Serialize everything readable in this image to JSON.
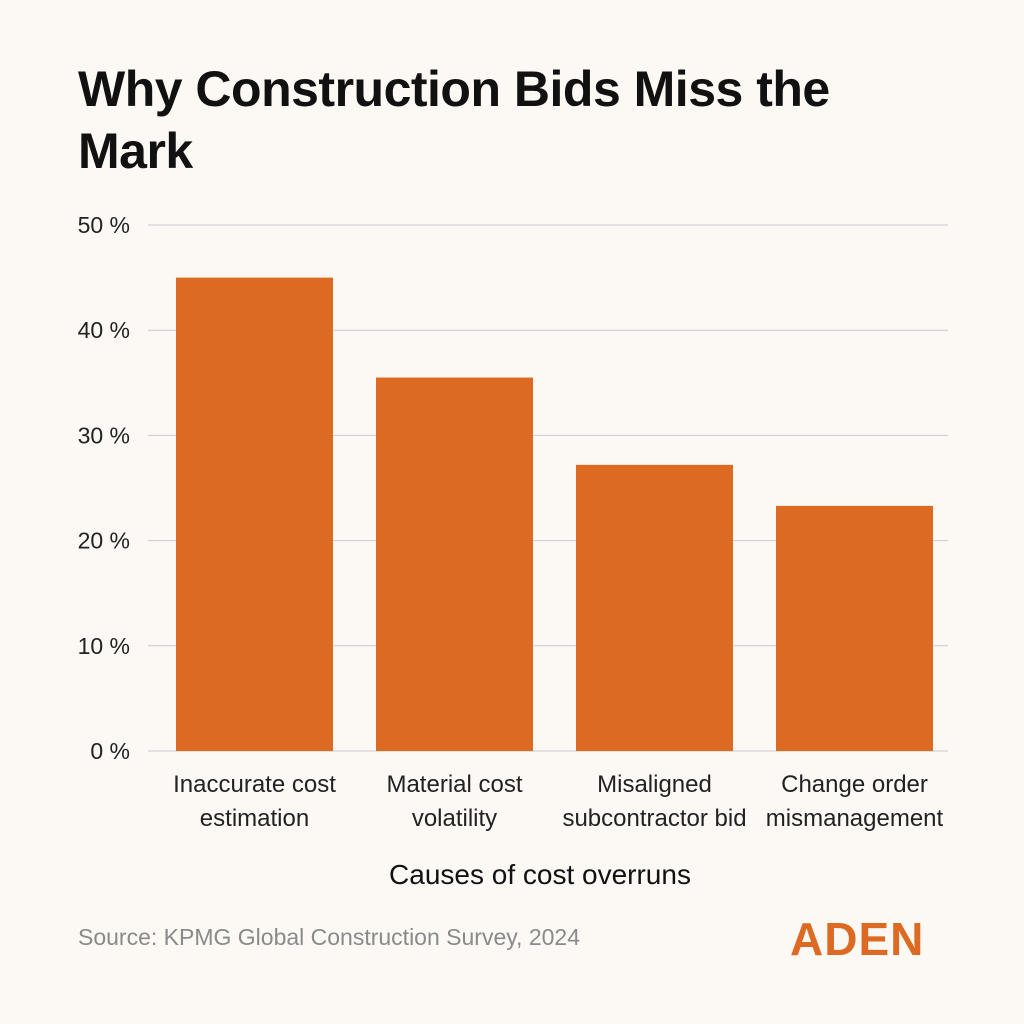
{
  "chart_data": {
    "type": "bar",
    "title": "Why Construction Bids Miss the Mark",
    "categories": [
      [
        "Inaccurate cost",
        "estimation"
      ],
      [
        "Material cost",
        "volatility"
      ],
      [
        "Misaligned",
        "subcontractor bid"
      ],
      [
        "Change order",
        "mismanagement"
      ]
    ],
    "values": [
      45,
      35.5,
      27.2,
      23.3
    ],
    "ylim": [
      0,
      50
    ],
    "yticks": [
      0,
      10,
      20,
      30,
      40,
      50
    ],
    "ytick_labels": [
      "0 %",
      "10 %",
      "20 %",
      "30 %",
      "40 %",
      "50 %"
    ],
    "xlabel": "Causes of cost overruns",
    "ylabel": "",
    "grid": true,
    "bar_color": "#dd6a22"
  },
  "footer": {
    "source": "Source: KPMG Global Construction Survey, 2024",
    "brand": "ADEN",
    "brand_color": "#dd6a22"
  }
}
